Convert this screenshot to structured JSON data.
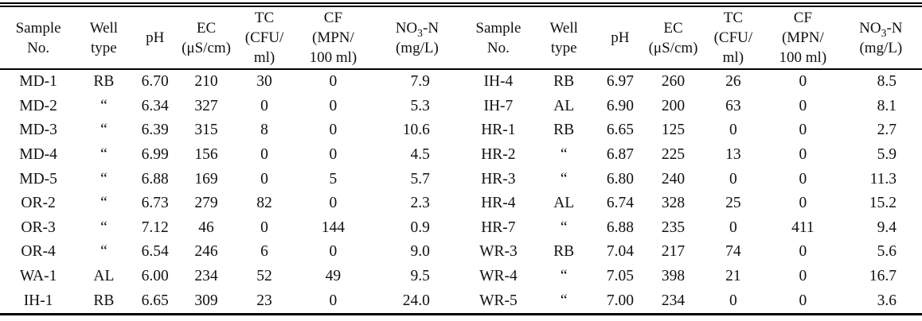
{
  "table": {
    "header": {
      "sample": [
        "Sample",
        "No."
      ],
      "well": [
        "Well",
        "type"
      ],
      "ph": [
        "pH"
      ],
      "ec": [
        "EC",
        "(μS/cm)"
      ],
      "tc": [
        "TC",
        "(CFU/",
        "ml)"
      ],
      "cf": [
        "CF",
        "(MPN/",
        "100 ml)"
      ],
      "no3n": {
        "prefix": "NO",
        "sub": "3",
        "suffix": "-N",
        "unit": "(mg/L)"
      }
    },
    "rows": [
      [
        "MD-1",
        "RB",
        "6.70",
        "210",
        "30",
        "0",
        "7.9",
        "IH-4",
        "RB",
        "6.97",
        "260",
        "26",
        "0",
        "8.5"
      ],
      [
        "MD-2",
        "“",
        "6.34",
        "327",
        "0",
        "0",
        "5.3",
        "IH-7",
        "AL",
        "6.90",
        "200",
        "63",
        "0",
        "8.1"
      ],
      [
        "MD-3",
        "“",
        "6.39",
        "315",
        "8",
        "0",
        "10.6",
        "HR-1",
        "RB",
        "6.65",
        "125",
        "0",
        "0",
        "2.7"
      ],
      [
        "MD-4",
        "“",
        "6.99",
        "156",
        "0",
        "0",
        "4.5",
        "HR-2",
        "“",
        "6.87",
        "225",
        "13",
        "0",
        "5.9"
      ],
      [
        "MD-5",
        "“",
        "6.88",
        "169",
        "0",
        "5",
        "5.7",
        "HR-3",
        "“",
        "6.80",
        "240",
        "0",
        "0",
        "11.3"
      ],
      [
        "OR-2",
        "“",
        "6.73",
        "279",
        "82",
        "0",
        "2.3",
        "HR-4",
        "AL",
        "6.74",
        "328",
        "25",
        "0",
        "15.2"
      ],
      [
        "OR-3",
        "“",
        "7.12",
        "46",
        "0",
        "144",
        "0.9",
        "HR-7",
        "“",
        "6.88",
        "235",
        "0",
        "411",
        "9.4"
      ],
      [
        "OR-4",
        "“",
        "6.54",
        "246",
        "6",
        "0",
        "9.0",
        "WR-3",
        "RB",
        "7.04",
        "217",
        "74",
        "0",
        "5.6"
      ],
      [
        "WA-1",
        "AL",
        "6.00",
        "234",
        "52",
        "49",
        "9.5",
        "WR-4",
        "“",
        "7.05",
        "398",
        "21",
        "0",
        "16.7"
      ],
      [
        "IH-1",
        "RB",
        "6.65",
        "309",
        "23",
        "0",
        "24.0",
        "WR-5",
        "“",
        "7.00",
        "234",
        "0",
        "0",
        "3.6"
      ]
    ]
  },
  "colors": {
    "background": "#ffffff",
    "text": "#111111",
    "rule": "#000000"
  }
}
